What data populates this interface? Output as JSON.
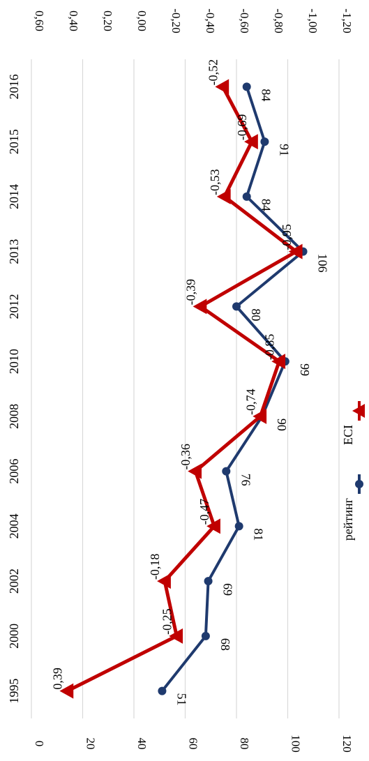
{
  "chart_data": {
    "type": "line",
    "rotated": "90° clockwise",
    "categories": [
      "1995",
      "2000",
      "2002",
      "2004",
      "2006",
      "2008",
      "2010",
      "2012",
      "2013",
      "2014",
      "2015",
      "2016"
    ],
    "left_axis": {
      "ticks": [
        "0",
        "20",
        "40",
        "60",
        "80",
        "100",
        "120"
      ],
      "range": [
        0,
        120
      ]
    },
    "right_axis": {
      "ticks": [
        "0,60",
        "0,40",
        "0,20",
        "0,00",
        "-0,20",
        "-0,40",
        "-0,60",
        "-0,80",
        "-1,00",
        "-1,20"
      ],
      "range": [
        0.6,
        -1.2
      ]
    },
    "series": [
      {
        "name": "рейтинг",
        "axis": "left",
        "color": "#1f3a6e",
        "marker": "circle",
        "values": [
          51,
          68,
          69,
          81,
          76,
          90,
          99,
          80,
          106,
          84,
          91,
          84
        ],
        "labels": [
          "51",
          "68",
          "69",
          "81",
          "76",
          "90",
          "99",
          "80",
          "106",
          "84",
          "91",
          "84"
        ]
      },
      {
        "name": "ECI",
        "axis": "right",
        "color": "#c00000",
        "marker": "triangle",
        "values": [
          0.39,
          -0.25,
          -0.18,
          -0.47,
          -0.36,
          -0.74,
          -0.85,
          -0.39,
          -0.95,
          -0.53,
          -0.69,
          -0.52
        ],
        "labels": [
          "0,39",
          "-0,25",
          "-0,18",
          "-0,47",
          "-0,36",
          "-0,74",
          "-0,85",
          "-0,39",
          "-0,95",
          "-0,53",
          "-0,69",
          "-0,52"
        ]
      }
    ],
    "grid": true,
    "legend": "bottom"
  }
}
